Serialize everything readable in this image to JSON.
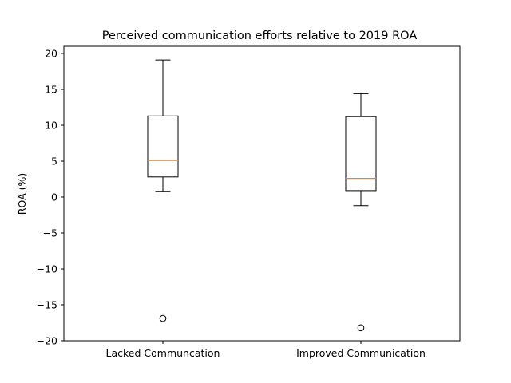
{
  "chart_data": {
    "type": "box",
    "title": "Perceived communication efforts relative to 2019 ROA",
    "xlabel": "",
    "ylabel": "ROA (%)",
    "ylim": [
      -20,
      21
    ],
    "yticks": [
      -20,
      -15,
      -10,
      -5,
      0,
      5,
      10,
      15,
      20
    ],
    "grid": false,
    "colors": {
      "box": "#000000",
      "median": "#ff7f0e",
      "frame": "#000000"
    },
    "categories": [
      "Lacked Communcation",
      "Improved Communication"
    ],
    "boxes": [
      {
        "category": "Lacked Communcation",
        "whisker_low": 0.8,
        "q1": 2.8,
        "median": 5.1,
        "q3": 11.3,
        "whisker_high": 19.1,
        "outliers": [
          -16.9
        ]
      },
      {
        "category": "Improved Communication",
        "whisker_low": -1.2,
        "q1": 0.9,
        "median": 2.6,
        "q3": 11.2,
        "whisker_high": 14.4,
        "outliers": [
          -18.2
        ]
      }
    ]
  }
}
